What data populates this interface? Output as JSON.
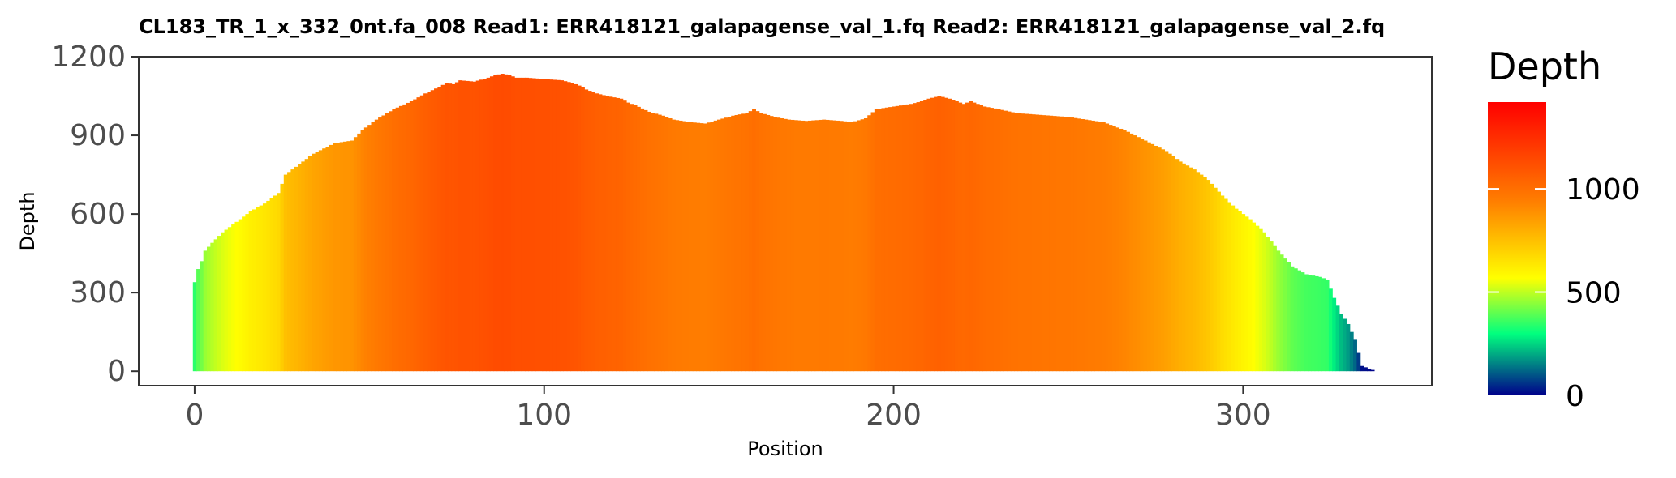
{
  "chart_data": {
    "type": "bar",
    "title": "CL183_TR_1_x_332_0nt.fa_008   Read1: ERR418121_galapagense_val_1.fq   Read2: ERR418121_galapagense_val_2.fq",
    "xlabel": "Position",
    "ylabel": "Depth",
    "xlim": [
      -16,
      354
    ],
    "ylim": [
      -55,
      1200
    ],
    "x_ticks": [
      0,
      100,
      200,
      300
    ],
    "y_ticks": [
      0,
      300,
      600,
      900,
      1200
    ],
    "x_tick_labels": [
      "0",
      "100",
      "200",
      "300"
    ],
    "y_tick_labels": [
      "0",
      "300",
      "600",
      "900",
      "1200"
    ],
    "grid": false,
    "legend": {
      "title": "Depth",
      "placement": "right",
      "range": [
        0,
        1420
      ],
      "ticks": [
        0,
        500,
        1000
      ],
      "tick_labels": [
        "0",
        "500",
        "1000"
      ],
      "colors": [
        "#00008b",
        "#00ff7f",
        "#ffff00",
        "#ff7f00",
        "#ff0000"
      ]
    },
    "profile": {
      "x": [
        0,
        1,
        2,
        3,
        5,
        8,
        12,
        16,
        20,
        24,
        26,
        30,
        34,
        40,
        45,
        48,
        52,
        57,
        62,
        66,
        70,
        72,
        74,
        76,
        80,
        84,
        86,
        88,
        90,
        92,
        95,
        100,
        105,
        108,
        110,
        112,
        115,
        118,
        122,
        124,
        126,
        130,
        134,
        137,
        142,
        146,
        150,
        154,
        158,
        160,
        162,
        166,
        170,
        175,
        180,
        185,
        188,
        192,
        195,
        200,
        205,
        208,
        210,
        213,
        216,
        220,
        222,
        226,
        230,
        235,
        240,
        245,
        250,
        255,
        260,
        266,
        272,
        278,
        282,
        286,
        290,
        294,
        298,
        302,
        306,
        310,
        314,
        318,
        322,
        324,
        326,
        328,
        330,
        332,
        334,
        337
      ],
      "y": [
        340,
        390,
        420,
        460,
        490,
        530,
        570,
        610,
        640,
        680,
        750,
        790,
        830,
        870,
        880,
        920,
        960,
        1000,
        1030,
        1060,
        1085,
        1100,
        1095,
        1110,
        1105,
        1120,
        1130,
        1135,
        1130,
        1120,
        1120,
        1115,
        1110,
        1100,
        1090,
        1075,
        1060,
        1050,
        1040,
        1025,
        1015,
        990,
        975,
        960,
        950,
        945,
        960,
        975,
        985,
        1000,
        985,
        970,
        960,
        955,
        960,
        955,
        950,
        965,
        1000,
        1010,
        1020,
        1030,
        1040,
        1050,
        1040,
        1020,
        1030,
        1010,
        1000,
        985,
        980,
        975,
        970,
        960,
        950,
        920,
        880,
        840,
        800,
        770,
        730,
        670,
        620,
        580,
        530,
        460,
        400,
        370,
        360,
        350,
        280,
        220,
        180,
        120,
        20,
        5
      ]
    }
  },
  "legend_ticks_text": [
    "0",
    "500",
    "1000"
  ]
}
